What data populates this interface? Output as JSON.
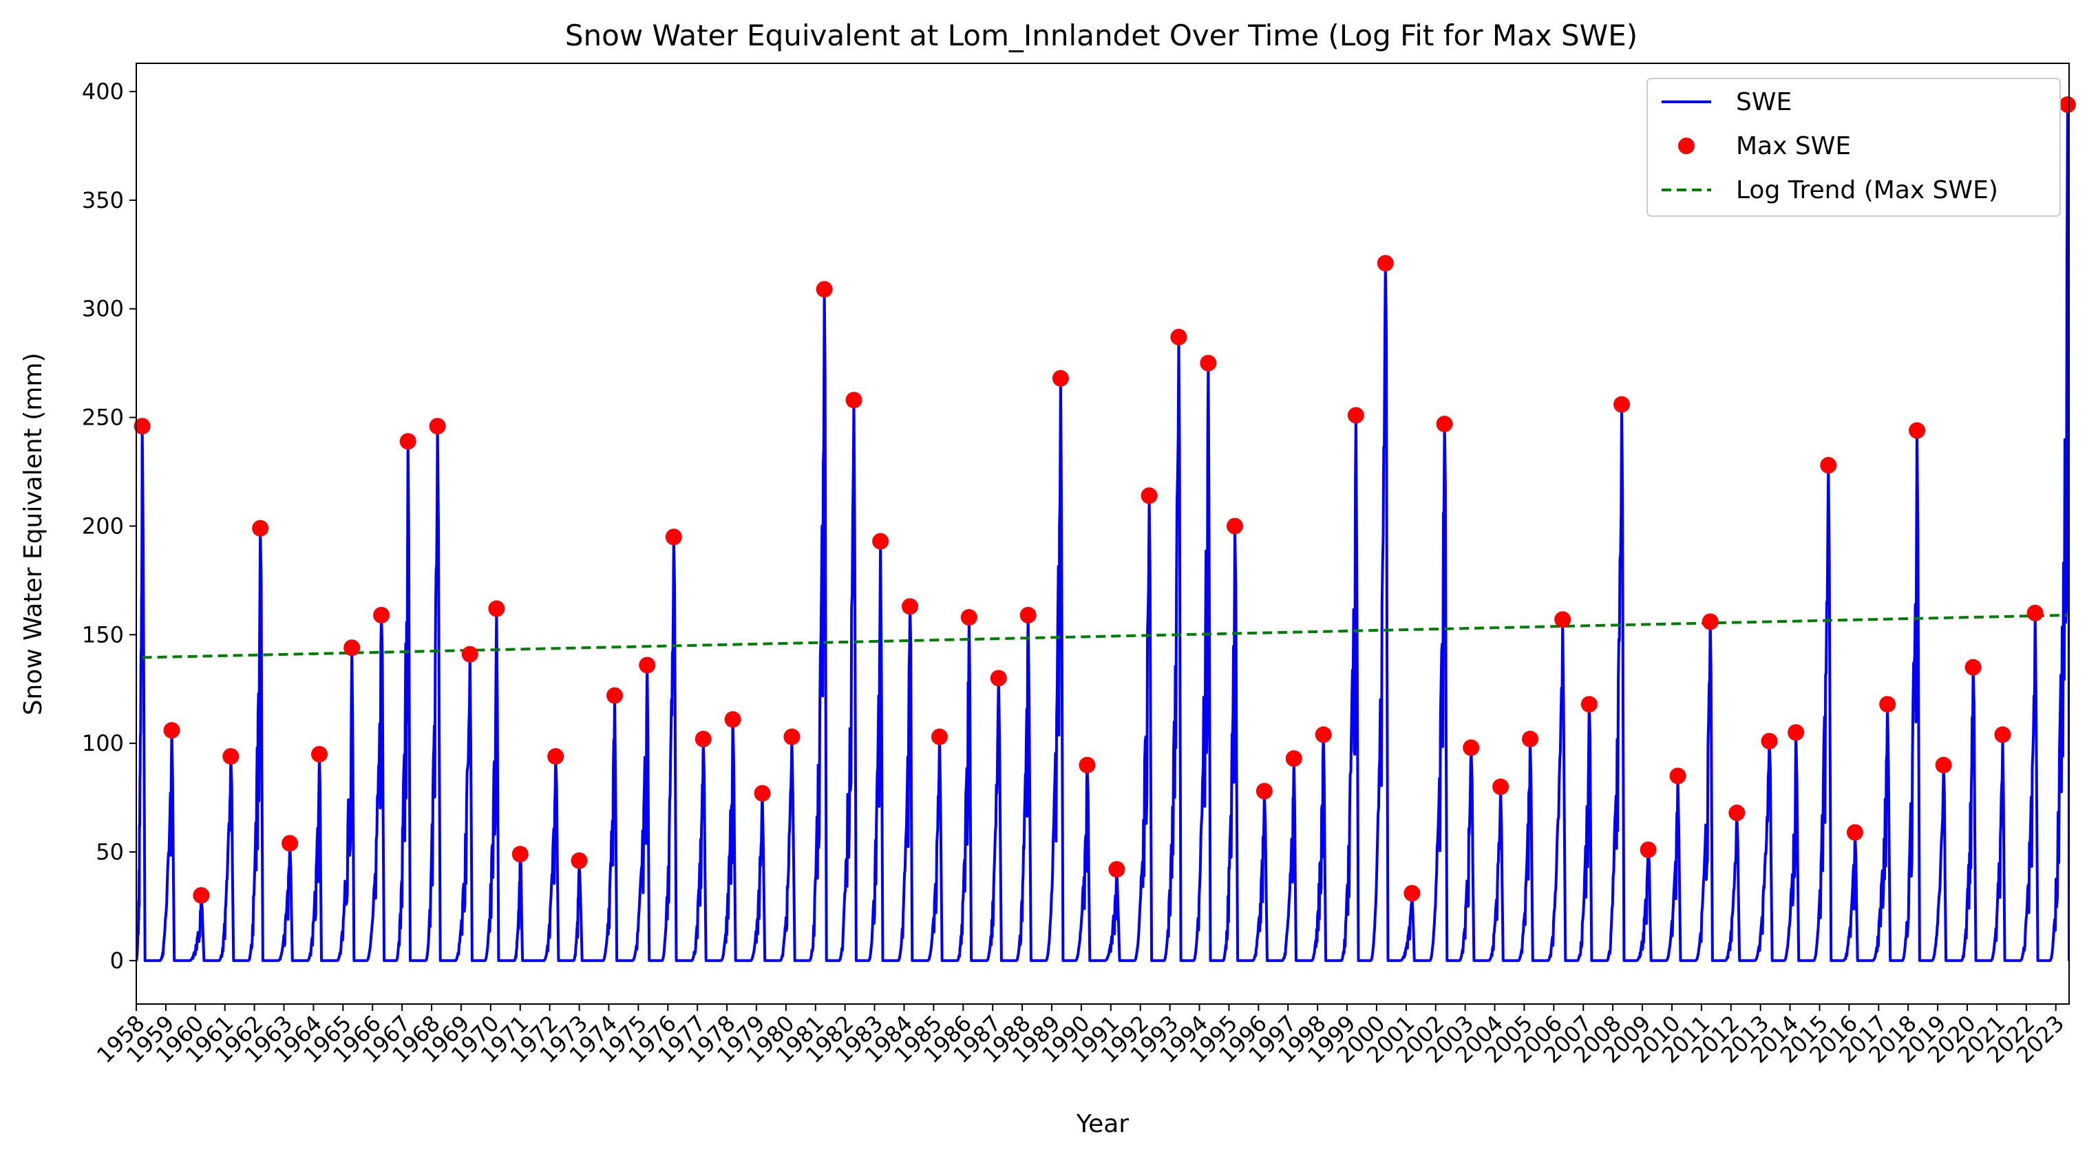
{
  "chart_data": {
    "type": "line",
    "title": "Snow Water Equivalent at Lom_Innlandet Over Time (Log Fit for Max SWE)",
    "xlabel": "Year",
    "ylabel": "Snow Water Equivalent (mm)",
    "xlim": [
      1958.0,
      2023.45
    ],
    "ylim": [
      -20,
      413
    ],
    "yticks": [
      0,
      50,
      100,
      150,
      200,
      250,
      300,
      350,
      400
    ],
    "xticks": [
      "1958",
      "1959",
      "1960",
      "1961",
      "1962",
      "1963",
      "1964",
      "1965",
      "1966",
      "1967",
      "1968",
      "1969",
      "1970",
      "1971",
      "1972",
      "1973",
      "1974",
      "1975",
      "1976",
      "1977",
      "1978",
      "1979",
      "1980",
      "1981",
      "1982",
      "1983",
      "1984",
      "1985",
      "1986",
      "1987",
      "1988",
      "1989",
      "1990",
      "1991",
      "1992",
      "1993",
      "1994",
      "1995",
      "1996",
      "1997",
      "1998",
      "1999",
      "2000",
      "2001",
      "2002",
      "2003",
      "2004",
      "2005",
      "2006",
      "2007",
      "2008",
      "2009",
      "2010",
      "2011",
      "2012",
      "2013",
      "2014",
      "2015",
      "2016",
      "2017",
      "2018",
      "2019",
      "2020",
      "2021",
      "2022",
      "2023"
    ],
    "grid": false,
    "legend_position": "top-right",
    "series": [
      {
        "name": "SWE",
        "kind": "line",
        "color": "#0000ff"
      },
      {
        "name": "Max SWE",
        "kind": "scatter",
        "color": "#ff0000",
        "x": [
          1958.2,
          1959.2,
          1960.2,
          1961.2,
          1962.2,
          1963.2,
          1964.2,
          1965.3,
          1966.3,
          1967.2,
          1968.2,
          1969.3,
          1970.2,
          1971.0,
          1972.2,
          1973.0,
          1974.2,
          1975.3,
          1976.2,
          1977.2,
          1978.2,
          1979.2,
          1980.2,
          1981.3,
          1982.3,
          1983.2,
          1984.2,
          1985.2,
          1986.2,
          1987.2,
          1988.2,
          1989.3,
          1990.2,
          1991.2,
          1992.3,
          1993.3,
          1994.3,
          1995.2,
          1996.2,
          1997.2,
          1998.2,
          1999.3,
          2000.3,
          2001.2,
          2002.3,
          2003.2,
          2004.2,
          2005.2,
          2006.3,
          2007.2,
          2008.3,
          2009.2,
          2010.2,
          2011.3,
          2012.2,
          2013.3,
          2014.2,
          2015.3,
          2016.2,
          2017.3,
          2018.3,
          2019.2,
          2020.2,
          2021.2,
          2022.3,
          2023.4
        ],
        "values": [
          246,
          106,
          30,
          94,
          199,
          54,
          95,
          144,
          159,
          239,
          246,
          141,
          162,
          49,
          94,
          46,
          122,
          136,
          195,
          102,
          111,
          77,
          103,
          309,
          258,
          193,
          163,
          103,
          158,
          130,
          159,
          268,
          90,
          42,
          214,
          287,
          275,
          200,
          78,
          93,
          104,
          251,
          321,
          31,
          247,
          98,
          80,
          102,
          157,
          118,
          256,
          51,
          85,
          156,
          68,
          101,
          105,
          228,
          59,
          118,
          244,
          90,
          135,
          104,
          160,
          394
        ]
      },
      {
        "name": "Log Trend (Max SWE)",
        "kind": "line",
        "style": "dashed",
        "color": "#008000",
        "x": [
          1958.2,
          2023.4
        ],
        "values": [
          139.5,
          159
        ]
      }
    ]
  }
}
